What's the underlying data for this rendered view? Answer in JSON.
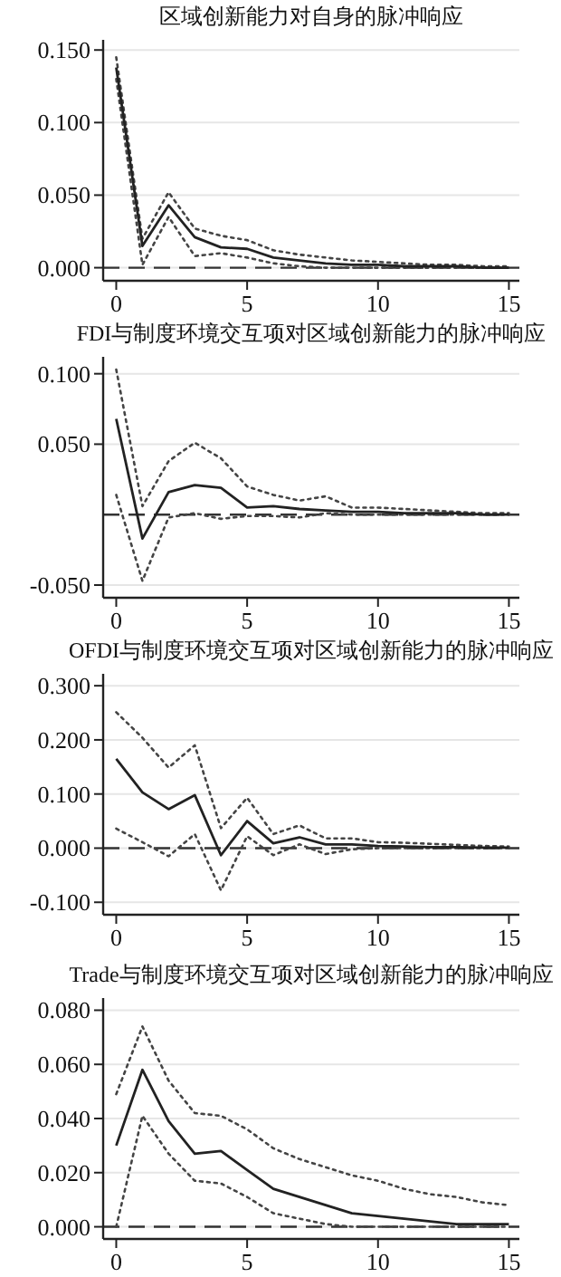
{
  "chart_data": [
    {
      "type": "line",
      "title": "区域创新能力对自身的脉冲响应",
      "x": [
        0,
        1,
        2,
        3,
        4,
        5,
        6,
        7,
        8,
        9,
        10,
        11,
        12,
        13,
        14,
        15
      ],
      "xlim": [
        -0.5,
        15.4
      ],
      "xticks": [
        0,
        5,
        10,
        15
      ],
      "ylim": [
        -0.009,
        0.157
      ],
      "yticks": [
        {
          "value": 0,
          "label": "0.000"
        },
        {
          "value": 0.05,
          "label": "0.050"
        },
        {
          "value": 0.1,
          "label": "0.100"
        },
        {
          "value": 0.15,
          "label": "0.150"
        }
      ],
      "grid": "y",
      "ref_lines": [
        {
          "axis": "y",
          "value": 0,
          "line_style": "dashed",
          "color": "#333333"
        }
      ],
      "series": [
        {
          "color": "#444444",
          "line_style": "dotted",
          "values": [
            0.145,
            0.02,
            0.052,
            0.027,
            0.022,
            0.019,
            0.012,
            0.009,
            0.007,
            0.005,
            0.004,
            0.003,
            0.002,
            0.002,
            0.001,
            0.001
          ]
        },
        {
          "color": "#444444",
          "line_style": "dotted",
          "values": [
            0.13,
            0.002,
            0.035,
            0.008,
            0.01,
            0.007,
            0.003,
            0.001,
            0.0,
            0.0,
            0.0,
            0.0,
            0.0,
            0.0,
            0.0,
            0.0
          ]
        },
        {
          "color": "#222222",
          "line_style": "solid",
          "values": [
            0.138,
            0.015,
            0.043,
            0.021,
            0.014,
            0.013,
            0.007,
            0.005,
            0.003,
            0.002,
            0.002,
            0.001,
            0.001,
            0.001,
            0.0,
            0.0
          ]
        }
      ]
    },
    {
      "type": "line",
      "title": "FDI与制度环境交互项对区域创新能力的脉冲响应",
      "x": [
        0,
        1,
        2,
        3,
        4,
        5,
        6,
        7,
        8,
        9,
        10,
        11,
        12,
        13,
        14,
        15
      ],
      "xlim": [
        -0.5,
        15.4
      ],
      "xticks": [
        0,
        5,
        10,
        15
      ],
      "ylim": [
        -0.059,
        0.112
      ],
      "yticks": [
        {
          "value": -0.05,
          "label": "-0.050"
        },
        {
          "value": 0.05,
          "label": "0.050"
        },
        {
          "value": 0.1,
          "label": "0.100"
        }
      ],
      "grid": "y",
      "ref_lines": [
        {
          "axis": "y",
          "value": 0,
          "line_style": "dashed",
          "color": "#333333"
        }
      ],
      "series": [
        {
          "color": "#444444",
          "line_style": "dotted",
          "values": [
            0.103,
            0.006,
            0.038,
            0.051,
            0.04,
            0.02,
            0.014,
            0.01,
            0.013,
            0.005,
            0.005,
            0.004,
            0.003,
            0.002,
            0.001,
            0.001
          ]
        },
        {
          "color": "#444444",
          "line_style": "dotted",
          "values": [
            0.014,
            -0.047,
            -0.002,
            0.001,
            -0.003,
            -0.001,
            -0.001,
            -0.002,
            0.001,
            0.0,
            0.0,
            0.0,
            0.0,
            0.0,
            0.0,
            0.0
          ]
        },
        {
          "color": "#222222",
          "line_style": "solid",
          "values": [
            0.068,
            -0.017,
            0.016,
            0.021,
            0.019,
            0.005,
            0.006,
            0.004,
            0.003,
            0.002,
            0.002,
            0.001,
            0.001,
            0.001,
            0.0,
            0.0
          ]
        }
      ]
    },
    {
      "type": "line",
      "title": "OFDI与制度环境交互项对区域创新能力的脉冲响应",
      "x": [
        0,
        1,
        2,
        3,
        4,
        5,
        6,
        7,
        8,
        9,
        10,
        11,
        12,
        13,
        14,
        15
      ],
      "xlim": [
        -0.5,
        15.4
      ],
      "xticks": [
        0,
        5,
        10,
        15
      ],
      "ylim": [
        -0.123,
        0.322
      ],
      "yticks": [
        {
          "value": -0.1,
          "label": "-0.100"
        },
        {
          "value": 0,
          "label": "0.000"
        },
        {
          "value": 0.1,
          "label": "0.100"
        },
        {
          "value": 0.2,
          "label": "0.200"
        },
        {
          "value": 0.3,
          "label": "0.300"
        }
      ],
      "grid": "y",
      "ref_lines": [
        {
          "axis": "y",
          "value": 0,
          "line_style": "dashed",
          "color": "#333333"
        }
      ],
      "series": [
        {
          "color": "#444444",
          "line_style": "dotted",
          "values": [
            0.251,
            0.204,
            0.149,
            0.19,
            0.037,
            0.093,
            0.026,
            0.042,
            0.018,
            0.018,
            0.011,
            0.01,
            0.008,
            0.006,
            0.004,
            0.003
          ]
        },
        {
          "color": "#444444",
          "line_style": "dotted",
          "values": [
            0.036,
            0.011,
            -0.015,
            0.026,
            -0.078,
            0.022,
            -0.013,
            0.007,
            -0.011,
            -0.002,
            0.0,
            0.0,
            0.0,
            0.0,
            0.0,
            0.0
          ]
        },
        {
          "color": "#222222",
          "line_style": "solid",
          "values": [
            0.165,
            0.103,
            0.072,
            0.098,
            -0.013,
            0.05,
            0.009,
            0.02,
            0.007,
            0.007,
            0.004,
            0.003,
            0.002,
            0.002,
            0.001,
            0.001
          ]
        }
      ]
    },
    {
      "type": "line",
      "title": "Trade与制度环境交互项对区域创新能力的脉冲响应",
      "x": [
        0,
        1,
        2,
        3,
        4,
        5,
        6,
        7,
        8,
        9,
        10,
        11,
        12,
        13,
        14,
        15
      ],
      "xlim": [
        -0.5,
        15.4
      ],
      "xticks": [
        0,
        5,
        10,
        15
      ],
      "ylim": [
        -0.0045,
        0.0845
      ],
      "yticks": [
        {
          "value": 0,
          "label": "0.000"
        },
        {
          "value": 0.02,
          "label": "0.020"
        },
        {
          "value": 0.04,
          "label": "0.040"
        },
        {
          "value": 0.06,
          "label": "0.060"
        },
        {
          "value": 0.08,
          "label": "0.080"
        }
      ],
      "grid": "y",
      "ref_lines": [
        {
          "axis": "y",
          "value": 0,
          "line_style": "dashed",
          "color": "#333333"
        }
      ],
      "series": [
        {
          "color": "#444444",
          "line_style": "dotted",
          "values": [
            0.049,
            0.074,
            0.054,
            0.042,
            0.041,
            0.036,
            0.029,
            0.025,
            0.022,
            0.019,
            0.017,
            0.014,
            0.012,
            0.011,
            0.009,
            0.008
          ]
        },
        {
          "color": "#444444",
          "line_style": "dotted",
          "values": [
            0.0,
            0.041,
            0.027,
            0.017,
            0.016,
            0.011,
            0.005,
            0.003,
            0.001,
            0.0,
            0.0,
            0.0,
            0.0,
            0.0,
            0.0,
            0.0
          ]
        },
        {
          "color": "#222222",
          "line_style": "solid",
          "values": [
            0.03,
            0.058,
            0.039,
            0.027,
            0.028,
            0.021,
            0.014,
            0.011,
            0.008,
            0.005,
            0.004,
            0.003,
            0.002,
            0.001,
            0.001,
            0.001
          ]
        }
      ]
    }
  ]
}
